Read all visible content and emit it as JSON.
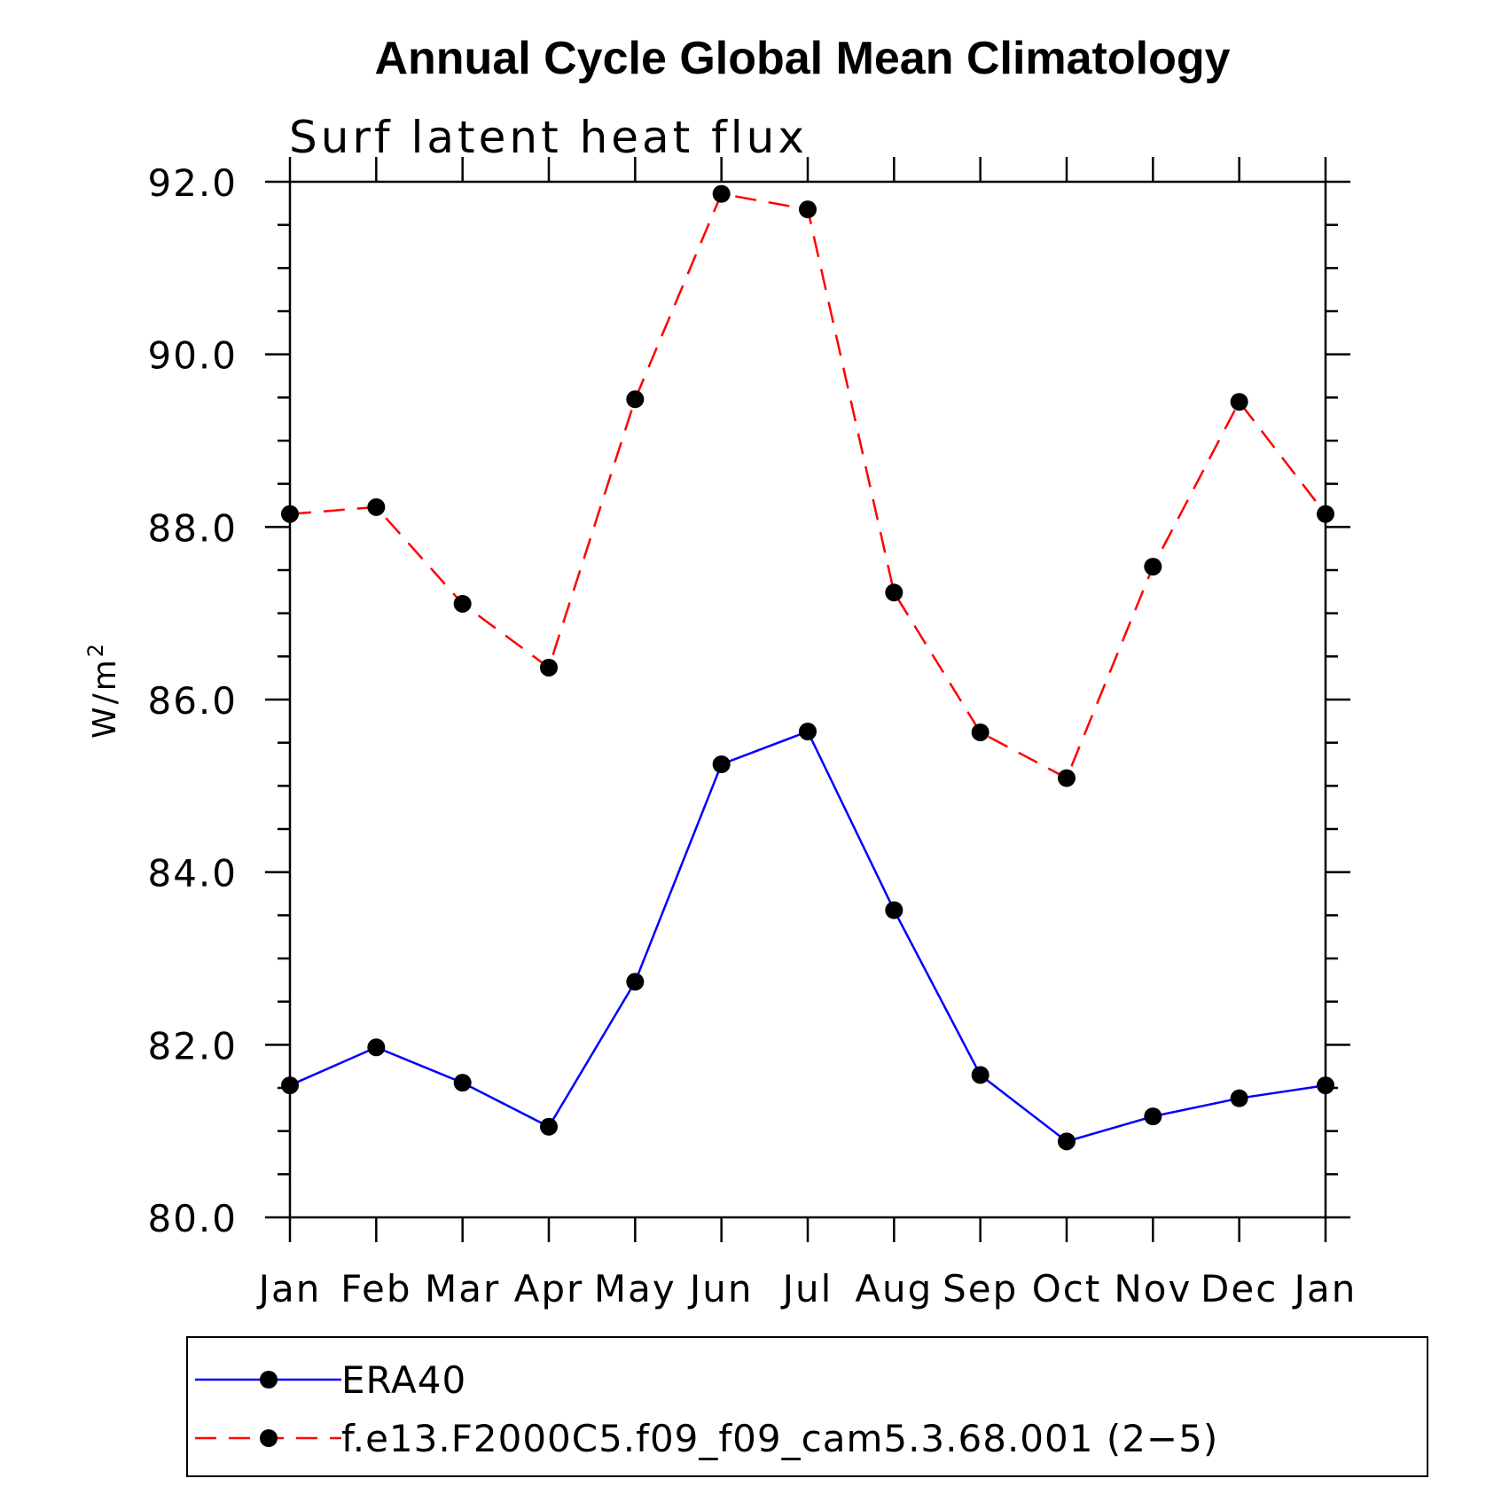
{
  "chart_data": {
    "type": "line",
    "title": "Annual Cycle Global Mean Climatology",
    "subtitle": "Surf latent heat flux",
    "xlabel": "",
    "ylabel": "W/m",
    "ylabel_superscript": "2",
    "ylim": [
      80,
      92
    ],
    "yticks": [
      "80.0",
      "82.0",
      "84.0",
      "86.0",
      "88.0",
      "90.0",
      "92.0"
    ],
    "categories": [
      "Jan",
      "Feb",
      "Mar",
      "Apr",
      "May",
      "Jun",
      "Jul",
      "Aug",
      "Sep",
      "Oct",
      "Nov",
      "Dec",
      "Jan"
    ],
    "grid": false,
    "legend_position": "bottom",
    "series": [
      {
        "name": "ERA40",
        "color": "#0000ff",
        "line_style": "solid",
        "marker": "filled-circle",
        "values": [
          81.53,
          81.97,
          81.56,
          81.05,
          82.73,
          85.25,
          85.63,
          83.56,
          81.65,
          80.88,
          81.17,
          81.38,
          81.53
        ]
      },
      {
        "name": "f.e13.F2000C5.f09_f09_cam5.3.68.001 (2−5)",
        "color": "#ff0000",
        "line_style": "dashed",
        "marker": "filled-circle",
        "values": [
          88.15,
          88.23,
          87.11,
          86.37,
          89.48,
          91.86,
          91.68,
          87.24,
          85.62,
          85.09,
          87.54,
          89.45,
          88.15
        ]
      }
    ]
  }
}
